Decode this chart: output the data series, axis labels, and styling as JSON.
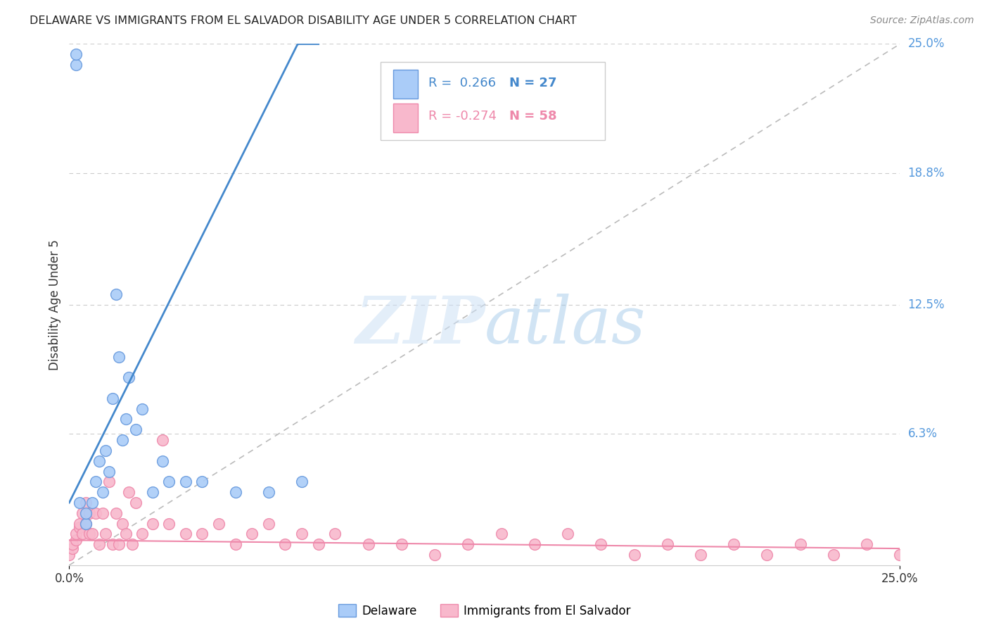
{
  "title": "DELAWARE VS IMMIGRANTS FROM EL SALVADOR DISABILITY AGE UNDER 5 CORRELATION CHART",
  "source": "Source: ZipAtlas.com",
  "ylabel": "Disability Age Under 5",
  "xlim": [
    0.0,
    0.25
  ],
  "ylim": [
    0.0,
    0.25
  ],
  "ytick_labels": [
    "6.3%",
    "12.5%",
    "18.8%",
    "25.0%"
  ],
  "ytick_values": [
    0.063,
    0.125,
    0.188,
    0.25
  ],
  "xtick_labels": [
    "0.0%",
    "25.0%"
  ],
  "delaware_color": "#aaccf8",
  "delaware_edge_color": "#6699dd",
  "delaware_line_color": "#4488cc",
  "salvador_color": "#f8b8cc",
  "salvador_edge_color": "#ee88aa",
  "salvador_line_color": "#ee88aa",
  "identity_line_color": "#bbbbbb",
  "grid_color": "#cccccc",
  "right_label_color": "#5599dd",
  "legend_R_delaware": "R =  0.266",
  "legend_N_delaware": "N = 27",
  "legend_R_salvador": "R = -0.274",
  "legend_N_salvador": "N = 58",
  "delaware_x": [
    0.002,
    0.002,
    0.003,
    0.005,
    0.005,
    0.007,
    0.008,
    0.009,
    0.01,
    0.011,
    0.012,
    0.013,
    0.014,
    0.015,
    0.016,
    0.017,
    0.018,
    0.02,
    0.022,
    0.025,
    0.028,
    0.03,
    0.035,
    0.04,
    0.05,
    0.06,
    0.07
  ],
  "delaware_y": [
    0.24,
    0.245,
    0.03,
    0.02,
    0.025,
    0.03,
    0.04,
    0.05,
    0.035,
    0.055,
    0.045,
    0.08,
    0.13,
    0.1,
    0.06,
    0.07,
    0.09,
    0.065,
    0.075,
    0.035,
    0.05,
    0.04,
    0.04,
    0.04,
    0.035,
    0.035,
    0.04
  ],
  "salvador_x": [
    0.0,
    0.001,
    0.001,
    0.002,
    0.002,
    0.003,
    0.003,
    0.004,
    0.004,
    0.005,
    0.005,
    0.006,
    0.006,
    0.007,
    0.008,
    0.009,
    0.01,
    0.011,
    0.012,
    0.013,
    0.014,
    0.015,
    0.016,
    0.017,
    0.018,
    0.019,
    0.02,
    0.022,
    0.025,
    0.028,
    0.03,
    0.035,
    0.04,
    0.045,
    0.05,
    0.055,
    0.06,
    0.065,
    0.07,
    0.075,
    0.08,
    0.09,
    0.1,
    0.11,
    0.12,
    0.13,
    0.14,
    0.15,
    0.16,
    0.17,
    0.18,
    0.19,
    0.2,
    0.21,
    0.22,
    0.23,
    0.24,
    0.25
  ],
  "salvador_y": [
    0.005,
    0.008,
    0.01,
    0.012,
    0.015,
    0.018,
    0.02,
    0.015,
    0.025,
    0.02,
    0.03,
    0.025,
    0.015,
    0.015,
    0.025,
    0.01,
    0.025,
    0.015,
    0.04,
    0.01,
    0.025,
    0.01,
    0.02,
    0.015,
    0.035,
    0.01,
    0.03,
    0.015,
    0.02,
    0.06,
    0.02,
    0.015,
    0.015,
    0.02,
    0.01,
    0.015,
    0.02,
    0.01,
    0.015,
    0.01,
    0.015,
    0.01,
    0.01,
    0.005,
    0.01,
    0.015,
    0.01,
    0.015,
    0.01,
    0.005,
    0.01,
    0.005,
    0.01,
    0.005,
    0.01,
    0.005,
    0.01,
    0.005
  ]
}
